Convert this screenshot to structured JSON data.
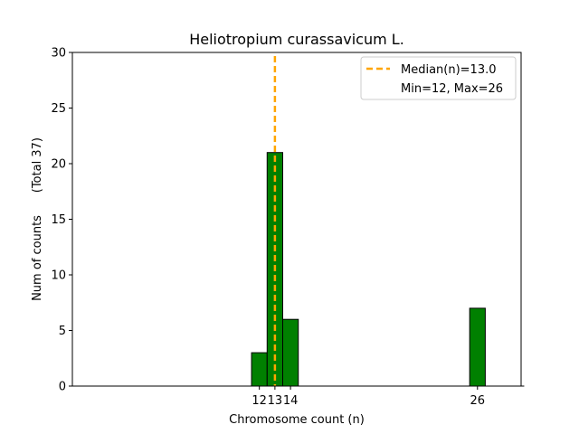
{
  "chart_data": {
    "type": "bar",
    "title": "Heliotropium curassavicum L.",
    "xlabel": "Chromosome count (n)",
    "ylabel": "Num of counts      (Total 37)",
    "xlim": [
      0,
      28.8
    ],
    "ylim": [
      0,
      30
    ],
    "yticks": [
      0,
      5,
      10,
      15,
      20,
      25,
      30
    ],
    "xticks": [
      12,
      13,
      14,
      26
    ],
    "bar_width": 1,
    "bar_color": "#008000",
    "bars": [
      {
        "x": 12,
        "value": 3
      },
      {
        "x": 13,
        "value": 21
      },
      {
        "x": 14,
        "value": 6
      },
      {
        "x": 26,
        "value": 7
      }
    ],
    "median": 13.0,
    "median_color": "#ffa500",
    "legend": {
      "position": "top-right",
      "entries": [
        "Median(n)=13.0",
        "Min=12, Max=26"
      ]
    },
    "grid": false
  }
}
